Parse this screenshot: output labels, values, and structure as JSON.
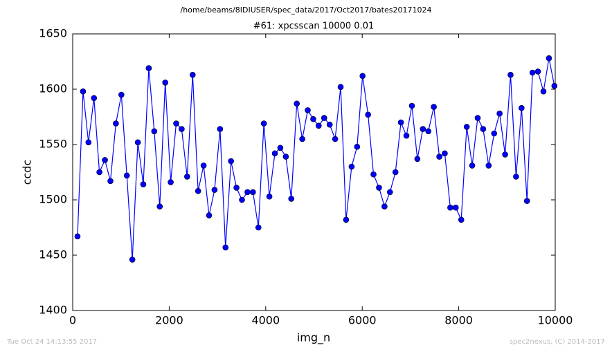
{
  "chart_data": {
    "type": "line",
    "suptitle": "/home/beams/8IDIUSER/spec_data/2017/Oct2017/bates20171024",
    "title": "#61: xpcsscan 10000 0.01",
    "xlabel": "img_n",
    "ylabel": "ccdc",
    "x": [
      100,
      214,
      327,
      441,
      554,
      668,
      782,
      895,
      1009,
      1122,
      1236,
      1350,
      1463,
      1577,
      1690,
      1804,
      1918,
      2031,
      2145,
      2258,
      2372,
      2486,
      2599,
      2713,
      2826,
      2940,
      3054,
      3167,
      3281,
      3394,
      3508,
      3622,
      3735,
      3849,
      3962,
      4076,
      4190,
      4303,
      4417,
      4530,
      4644,
      4758,
      4871,
      4985,
      5098,
      5212,
      5326,
      5439,
      5553,
      5666,
      5780,
      5894,
      6007,
      6121,
      6234,
      6348,
      6462,
      6575,
      6689,
      6802,
      6916,
      7030,
      7143,
      7257,
      7370,
      7484,
      7598,
      7711,
      7825,
      7938,
      8052,
      8166,
      8279,
      8393,
      8506,
      8620,
      8734,
      8847,
      8961,
      9074,
      9188,
      9302,
      9415,
      9529,
      9642,
      9756,
      9870,
      9983
    ],
    "series": [
      {
        "color": "#0000ff",
        "values": [
          1467,
          1598,
          1552,
          1592,
          1525,
          1536,
          1517,
          1569,
          1595,
          1522,
          1446,
          1552,
          1514,
          1619,
          1562,
          1494,
          1606,
          1516,
          1569,
          1564,
          1521,
          1613,
          1508,
          1531,
          1486,
          1509,
          1564,
          1457,
          1535,
          1511,
          1500,
          1507,
          1507,
          1475,
          1569,
          1503,
          1542,
          1547,
          1539,
          1501,
          1587,
          1555,
          1581,
          1573,
          1567,
          1574,
          1568,
          1555,
          1602,
          1482,
          1530,
          1548,
          1612,
          1577,
          1523,
          1511,
          1494,
          1507,
          1525,
          1570,
          1558,
          1585,
          1537,
          1564,
          1562,
          1584,
          1539,
          1542,
          1493,
          1493,
          1482,
          1566,
          1531,
          1574,
          1564,
          1531,
          1560,
          1578,
          1541,
          1613,
          1521,
          1583,
          1499,
          1615,
          1616,
          1598,
          1628,
          1603
        ]
      }
    ],
    "xlim": [
      0,
      10000
    ],
    "xticks": [
      0,
      2000,
      4000,
      6000,
      8000,
      10000
    ],
    "ylim": [
      1400,
      1650
    ],
    "yticks": [
      1400,
      1450,
      1500,
      1550,
      1600,
      1650
    ],
    "grid": false
  },
  "footer": {
    "timestamp": "Tue Oct 24 14:13:55 2017",
    "credit": "spec2nexus, (C) 2014-2017"
  }
}
